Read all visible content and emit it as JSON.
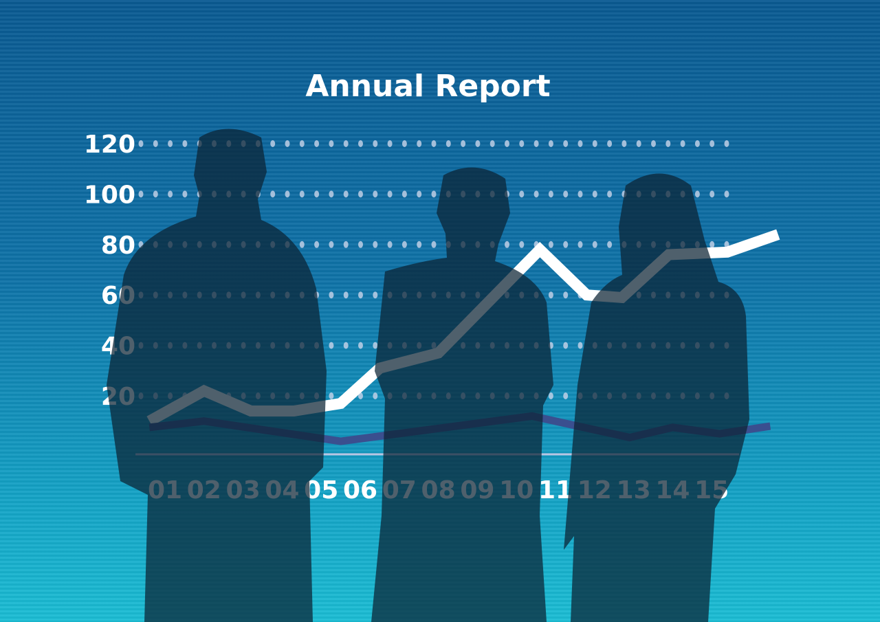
{
  "chart_data": {
    "type": "line",
    "title": "Annual Report",
    "categories": [
      "01",
      "02",
      "03",
      "04",
      "05",
      "06",
      "07",
      "08",
      "09",
      "10",
      "11",
      "12",
      "13",
      "14",
      "15"
    ],
    "y_ticks": [
      "120",
      "100",
      "80",
      "60",
      "40",
      "20"
    ],
    "ylim": [
      0,
      120
    ],
    "grid": "dotted horizontal",
    "series": [
      {
        "color": "#ffffff",
        "x": [
          0.6,
          2.0,
          3.2,
          4.3,
          5.5,
          6.5,
          8.0,
          10.6,
          11.8,
          12.7,
          13.9,
          15.4,
          16.7
        ],
        "values": [
          10,
          22,
          14,
          14,
          17,
          31,
          37,
          78,
          60,
          59,
          76,
          77,
          84
        ]
      },
      {
        "color": "#3a4f8f",
        "x": [
          0.6,
          2.0,
          5.5,
          10.4,
          12.9,
          14.0,
          15.2,
          16.5
        ],
        "values": [
          7.5,
          10,
          2,
          12,
          3.5,
          7.5,
          5,
          8
        ]
      }
    ]
  },
  "colors": {
    "background_top": "#0a5a92",
    "background_bottom": "#1bbdd4",
    "silhouette": "#0b2233"
  }
}
